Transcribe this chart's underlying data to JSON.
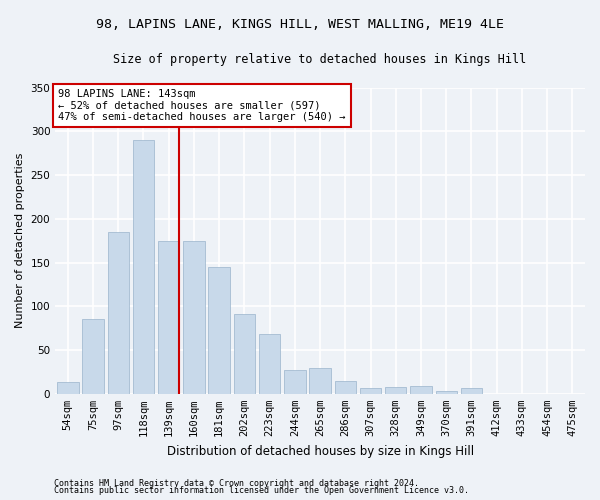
{
  "title1": "98, LAPINS LANE, KINGS HILL, WEST MALLING, ME19 4LE",
  "title2": "Size of property relative to detached houses in Kings Hill",
  "xlabel": "Distribution of detached houses by size in Kings Hill",
  "ylabel": "Number of detached properties",
  "bar_values": [
    13,
    85,
    185,
    290,
    175,
    175,
    145,
    91,
    68,
    27,
    30,
    15,
    7,
    8,
    9,
    3,
    7,
    0,
    0,
    0,
    0
  ],
  "bar_labels": [
    "54sqm",
    "75sqm",
    "97sqm",
    "118sqm",
    "139sqm",
    "160sqm",
    "181sqm",
    "202sqm",
    "223sqm",
    "244sqm",
    "265sqm",
    "286sqm",
    "307sqm",
    "328sqm",
    "349sqm",
    "370sqm",
    "391sqm",
    "412sqm",
    "433sqm",
    "454sqm",
    "475sqm"
  ],
  "bar_color": "#c8d9ea",
  "bar_edge_color": "#9ab4cc",
  "vline_x_index": 4,
  "vline_x_offset": 0.42,
  "annotation_line1": "98 LAPINS LANE: 143sqm",
  "annotation_line2": "← 52% of detached houses are smaller (597)",
  "annotation_line3": "47% of semi-detached houses are larger (540) →",
  "annotation_box_color": "#ffffff",
  "annotation_box_edge": "#cc0000",
  "vline_color": "#cc0000",
  "footer1": "Contains HM Land Registry data © Crown copyright and database right 2024.",
  "footer2": "Contains public sector information licensed under the Open Government Licence v3.0.",
  "ylim": [
    0,
    350
  ],
  "yticks": [
    0,
    50,
    100,
    150,
    200,
    250,
    300,
    350
  ],
  "bg_color": "#eef2f7",
  "grid_color": "#ffffff",
  "title1_fontsize": 9.5,
  "title2_fontsize": 8.5,
  "xlabel_fontsize": 8.5,
  "ylabel_fontsize": 8,
  "tick_fontsize": 7.5,
  "ann_fontsize": 7.5,
  "footer_fontsize": 6.0
}
